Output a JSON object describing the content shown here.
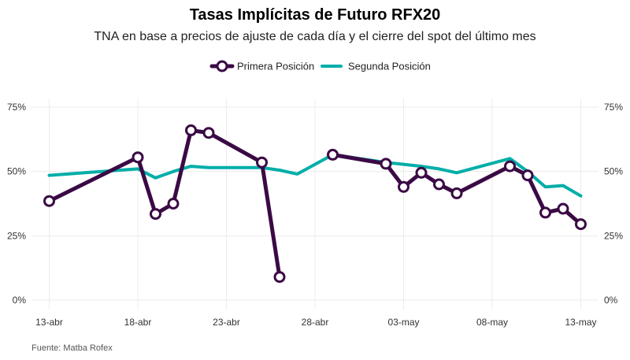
{
  "chart_data": {
    "type": "line",
    "title": "Tasas Implícitas de Futuro RFX20",
    "subtitle": "TNA en base a precios de ajuste de cada día y el cierre del spot del último mes",
    "source": "Fuente: Matba Rofex",
    "xlabel": "",
    "ylabel": "",
    "ylim": [
      0,
      75
    ],
    "y_ticks": [
      0,
      25,
      50,
      75
    ],
    "y_tick_labels": [
      "0%",
      "25%",
      "50%",
      "75%"
    ],
    "x_ticks": [
      13,
      18,
      23,
      28,
      33,
      38,
      43
    ],
    "x_tick_labels": [
      "13-abr",
      "18-abr",
      "23-abr",
      "28-abr",
      "03-may",
      "08-may",
      "13-may"
    ],
    "grid": true,
    "legend_position": "top",
    "series": [
      {
        "name": "Primera Posición",
        "color": "#3b0a45",
        "marker": "circle",
        "segments": [
          [
            [
              13,
              38.5
            ],
            [
              18,
              55.5
            ],
            [
              19,
              33.5
            ],
            [
              20,
              37.5
            ],
            [
              21,
              66
            ],
            [
              22,
              65
            ],
            [
              25,
              53.5
            ],
            [
              26,
              9
            ]
          ],
          [
            [
              29,
              56.5
            ],
            [
              32,
              53
            ],
            [
              33,
              44
            ],
            [
              34,
              49.5
            ],
            [
              35,
              45
            ],
            [
              36,
              41.5
            ],
            [
              39,
              52
            ],
            [
              40,
              48.5
            ],
            [
              41,
              34
            ],
            [
              42,
              35.5
            ],
            [
              43,
              29.5
            ]
          ]
        ]
      },
      {
        "name": "Segunda Posición",
        "color": "#00aea8",
        "marker": "none",
        "segments": [
          [
            [
              13,
              48.5
            ],
            [
              17,
              50.5
            ],
            [
              18,
              51
            ],
            [
              19,
              47.5
            ],
            [
              20,
              50
            ],
            [
              21,
              52
            ],
            [
              22,
              51.5
            ],
            [
              25,
              51.5
            ],
            [
              26,
              50.5
            ],
            [
              27,
              49
            ],
            [
              29,
              56.5
            ],
            [
              32,
              53.5
            ],
            [
              34,
              52
            ],
            [
              35,
              51
            ],
            [
              36,
              49.5
            ],
            [
              39,
              55
            ],
            [
              40,
              50
            ],
            [
              41,
              44
            ],
            [
              42,
              44.5
            ],
            [
              43,
              40.5
            ]
          ]
        ]
      }
    ]
  }
}
